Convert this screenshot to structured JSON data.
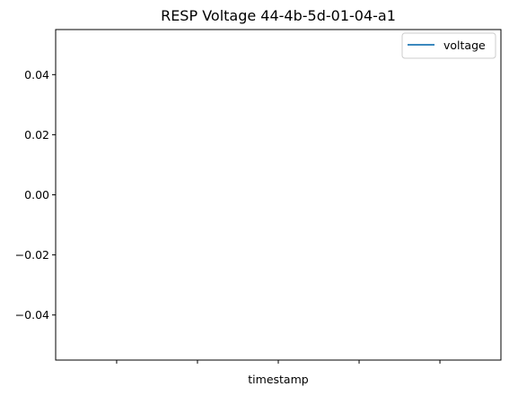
{
  "chart_data": {
    "type": "line",
    "title": "RESP Voltage 44-4b-5d-01-04-a1",
    "xlabel": "timestamp",
    "ylabel": "",
    "ylim": [
      -0.055,
      0.055
    ],
    "yticks": [
      0.04,
      0.02,
      0.0,
      -0.02,
      -0.04
    ],
    "ytick_labels": [
      "0.04",
      "0.02",
      "0.00",
      "−0.02",
      "−0.04"
    ],
    "xtick_count": 5,
    "grid": false,
    "legend_position": "top-right",
    "series": [
      {
        "name": "voltage",
        "color": "#1f77b4",
        "values": []
      }
    ]
  }
}
